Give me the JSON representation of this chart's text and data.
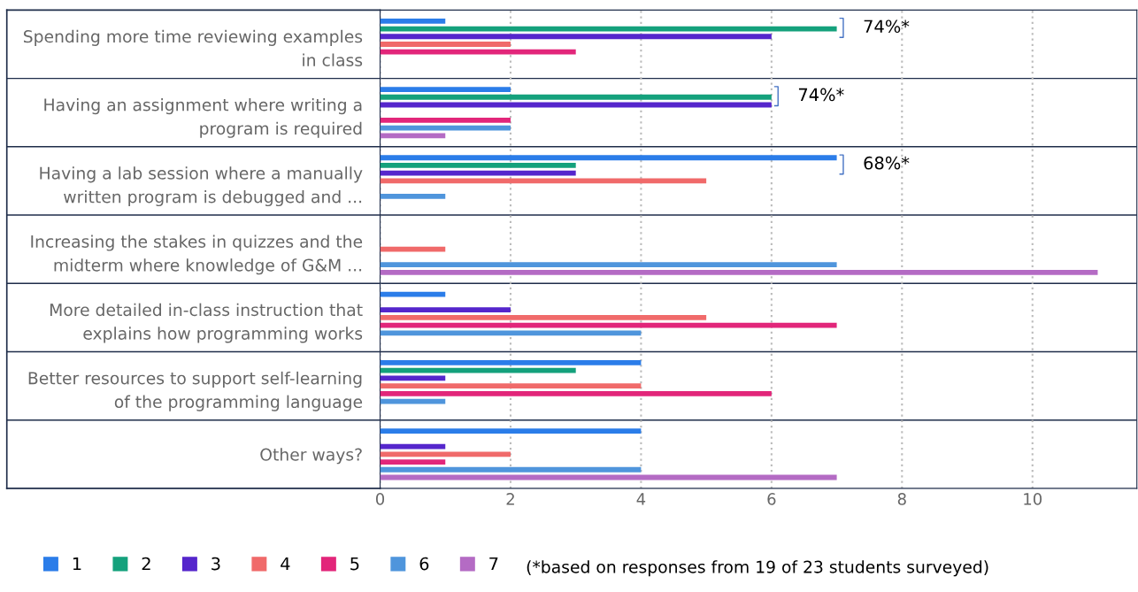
{
  "chart_data": {
    "type": "bar",
    "orientation": "horizontal",
    "categories": [
      "Spending more time reviewing examples\nin class",
      "Having an assignment where writing a\nprogram is required",
      "Having a lab session where a manually\nwritten program is debugged and ...",
      "Increasing the stakes in quizzes and the\nmidterm where knowledge of G&M ...",
      "More detailed in-class instruction that\nexplains how programming works",
      "Better resources to support self-learning\nof the programming language",
      "Other ways?"
    ],
    "series": [
      {
        "name": "1",
        "color": "#2b7de9",
        "values": [
          1,
          2,
          7,
          0,
          1,
          4,
          4
        ]
      },
      {
        "name": "2",
        "color": "#14a17c",
        "values": [
          7,
          6,
          3,
          0,
          0,
          3,
          0
        ]
      },
      {
        "name": "3",
        "color": "#5526cc",
        "values": [
          6,
          6,
          3,
          0,
          2,
          1,
          1
        ]
      },
      {
        "name": "4",
        "color": "#f06a6a",
        "values": [
          2,
          0,
          5,
          1,
          5,
          4,
          2
        ]
      },
      {
        "name": "5",
        "color": "#e2267a",
        "values": [
          3,
          2,
          0,
          0,
          7,
          6,
          1
        ]
      },
      {
        "name": "6",
        "color": "#4f95dc",
        "values": [
          0,
          2,
          1,
          7,
          4,
          1,
          4
        ]
      },
      {
        "name": "7",
        "color": "#b46bc4",
        "values": [
          0,
          1,
          0,
          11,
          0,
          0,
          7
        ]
      }
    ],
    "xlim": [
      0,
      11.6
    ],
    "xticks": [
      0,
      2,
      4,
      6,
      8,
      10
    ],
    "grid": "x",
    "legend": "bottom",
    "annotations": [
      "74%*",
      "74%*",
      "68%*",
      "(*based on responses from 19 of 23 students surveyed)"
    ]
  }
}
